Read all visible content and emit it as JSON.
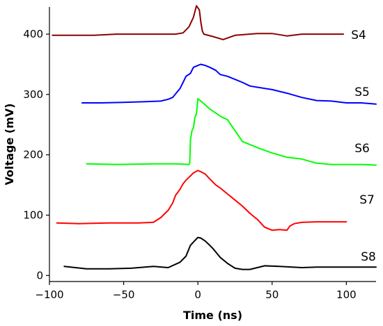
{
  "chart_data": {
    "type": "line",
    "title": "",
    "xlabel": "Time (ns)",
    "ylabel": "Voltage (mV)",
    "xlim": [
      -100,
      120
    ],
    "ylim": [
      -10,
      445
    ],
    "xticks": [
      -100,
      -50,
      0,
      50,
      100
    ],
    "xtick_labels": [
      "−100",
      "−50",
      "0",
      "50",
      "100"
    ],
    "yticks": [
      0,
      100,
      200,
      300,
      400
    ],
    "ytick_labels": [
      "0",
      "100",
      "200",
      "300",
      "400"
    ],
    "grid": false,
    "legend": "inline labels at right end of each trace",
    "series": [
      {
        "name": "S4",
        "color": "#8b0000",
        "x": [
          -98,
          -70,
          -55,
          -30,
          -15,
          -10,
          -6,
          -3,
          -1,
          1,
          2,
          3,
          4,
          10,
          17,
          25,
          40,
          50,
          60,
          70,
          80,
          90,
          98
        ],
        "y": [
          398,
          398,
          400,
          400,
          400,
          402,
          412,
          428,
          447,
          440,
          420,
          405,
          400,
          396,
          391,
          398,
          401,
          401,
          397,
          400,
          400,
          400,
          400
        ]
      },
      {
        "name": "S5",
        "color": "#0000ff",
        "x": [
          -78,
          -65,
          -50,
          -35,
          -25,
          -20,
          -17,
          -12,
          -10,
          -8,
          -5,
          -3,
          0,
          2,
          5,
          8,
          12,
          15,
          20,
          25,
          30,
          35,
          40,
          50,
          60,
          70,
          80,
          90,
          100,
          110,
          120
        ],
        "y": [
          286,
          286,
          287,
          288,
          289,
          292,
          295,
          310,
          320,
          330,
          335,
          345,
          348,
          350,
          348,
          345,
          340,
          333,
          330,
          325,
          320,
          314,
          312,
          308,
          302,
          295,
          290,
          289,
          286,
          286,
          284
        ]
      },
      {
        "name": "S6",
        "color": "#00ff00",
        "x": [
          -75,
          -55,
          -30,
          -15,
          -6,
          -5.5,
          -5,
          -4,
          -3,
          -2,
          -1,
          0,
          3,
          8,
          15,
          20,
          25,
          30,
          40,
          50,
          60,
          70,
          80,
          90,
          100,
          110,
          120
        ],
        "y": [
          185,
          184,
          185,
          185,
          184,
          186,
          225,
          240,
          245,
          262,
          268,
          293,
          287,
          276,
          264,
          258,
          240,
          222,
          212,
          203,
          196,
          193,
          186,
          184,
          184,
          184,
          183
        ]
      },
      {
        "name": "S7",
        "color": "#ff0000",
        "x": [
          -95,
          -80,
          -60,
          -40,
          -30,
          -25,
          -20,
          -17,
          -15,
          -12,
          -10,
          -8,
          -5,
          -3,
          0,
          2,
          5,
          8,
          12,
          15,
          20,
          25,
          30,
          35,
          40,
          45,
          50,
          55,
          60,
          62,
          65,
          70,
          80,
          90,
          100
        ],
        "y": [
          87,
          86,
          87,
          87,
          88,
          96,
          108,
          120,
          133,
          143,
          152,
          158,
          165,
          170,
          174,
          172,
          168,
          160,
          150,
          145,
          135,
          125,
          115,
          103,
          93,
          80,
          75,
          76,
          75,
          82,
          86,
          88,
          89,
          89,
          89
        ]
      },
      {
        "name": "S8",
        "color": "#000000",
        "x": [
          -90,
          -75,
          -60,
          -45,
          -30,
          -20,
          -12,
          -8,
          -5,
          -2,
          0,
          2,
          5,
          8,
          10,
          15,
          20,
          25,
          30,
          35,
          40,
          45,
          55,
          70,
          80,
          90,
          100,
          110,
          120
        ],
        "y": [
          15,
          11,
          11,
          12,
          15,
          13,
          22,
          32,
          50,
          58,
          63,
          62,
          57,
          50,
          45,
          30,
          20,
          12,
          10,
          10,
          13,
          16,
          15,
          13,
          14,
          14,
          14,
          14,
          14
        ]
      }
    ]
  }
}
